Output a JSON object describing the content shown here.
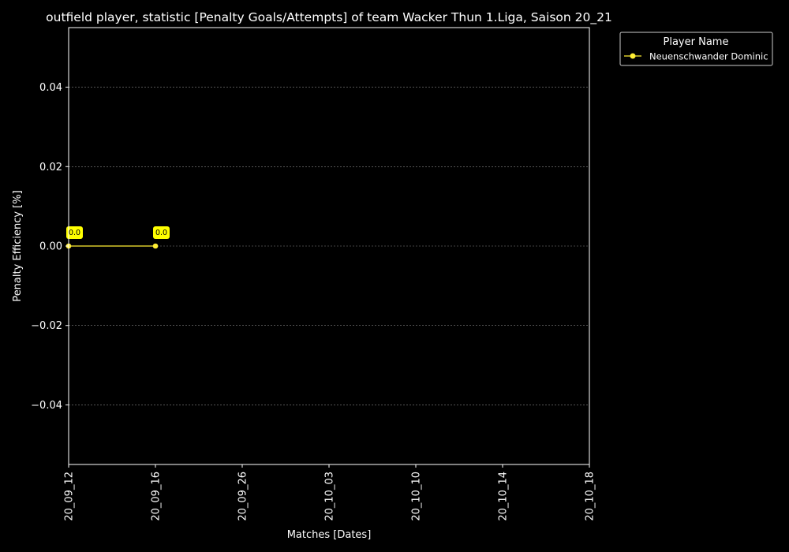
{
  "colors": {
    "background": "#000000",
    "foreground": "#ffffff",
    "series": "#ffee33",
    "label_box": "#ffff00",
    "label_text": "#000000",
    "grid": "#888888"
  },
  "chart_data": {
    "type": "line",
    "title": "outfield player, statistic [Penalty Goals/Attempts] of team Wacker Thun 1.Liga, Saison 20_21",
    "xlabel": "Matches [Dates]",
    "ylabel": "Penalty Efficiency [%]",
    "x_ticks": [
      "20_09_12",
      "20_09_16",
      "20_09_26",
      "20_10_03",
      "20_10_10",
      "20_10_14",
      "20_10_18"
    ],
    "ylim": [
      -0.055,
      0.055
    ],
    "y_ticks": [
      {
        "value": 0.04,
        "label": "0.04"
      },
      {
        "value": 0.02,
        "label": "0.02"
      },
      {
        "value": 0.0,
        "label": "0.00"
      },
      {
        "value": -0.02,
        "label": "−0.02"
      },
      {
        "value": -0.04,
        "label": "−0.04"
      }
    ],
    "grid": true,
    "legend": {
      "title": "Player Name",
      "placement": "outside-top-right"
    },
    "series": [
      {
        "name": "Neuenschwander Dominic",
        "points": [
          {
            "x": "20_09_12",
            "y": 0.0,
            "label": "0.0"
          },
          {
            "x": "20_09_16",
            "y": 0.0,
            "label": "0.0"
          }
        ]
      }
    ]
  }
}
